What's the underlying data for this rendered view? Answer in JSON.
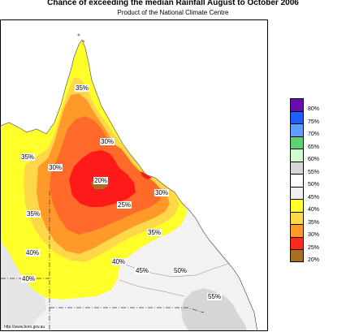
{
  "header": {
    "title": "Chance of exceeding the median Rainfall August to October 2006",
    "subtitle": "Product of the National Climate Centre"
  },
  "map": {
    "credit": "http://www.bom.gov.au",
    "labels": [
      {
        "id": "l35a",
        "text": "35%"
      },
      {
        "id": "l30a",
        "text": "30%"
      },
      {
        "id": "l35b",
        "text": "35%"
      },
      {
        "id": "l30b",
        "text": "30%"
      },
      {
        "id": "l20",
        "text": "20%"
      },
      {
        "id": "l25",
        "text": "25%"
      },
      {
        "id": "l30c",
        "text": "30%"
      },
      {
        "id": "l35c",
        "text": "35%"
      },
      {
        "id": "l35d",
        "text": "35%"
      },
      {
        "id": "l40a",
        "text": "40%"
      },
      {
        "id": "l40b",
        "text": "40%"
      },
      {
        "id": "l40c",
        "text": "40%"
      },
      {
        "id": "l45",
        "text": "45%"
      },
      {
        "id": "l50",
        "text": "50%"
      },
      {
        "id": "l55",
        "text": "55%"
      }
    ]
  },
  "legend": {
    "boundaries": [
      "80%",
      "75%",
      "70%",
      "65%",
      "60%",
      "55%",
      "50%",
      "45%",
      "40%",
      "35%",
      "30%",
      "25%",
      "20%"
    ],
    "colors": [
      "#6a0dad",
      "#1f5fff",
      "#5f9eff",
      "#5fcf6f",
      "#ccffcc",
      "#d6d6d6",
      "#ffffff",
      "#f0f0f0",
      "#ffff2a",
      "#ffd84a",
      "#ff9a2a",
      "#ff2a1a",
      "#a8711f"
    ]
  },
  "colors": {
    "band_20": "#a8711f",
    "band_20_25": "#ff1a1a",
    "band_25_30": "#ff6a2a",
    "band_30_35": "#ff9a2a",
    "band_35_40": "#ffe23a",
    "band_40_45": "#ffff2a",
    "band_45_55": "#f2f2f2",
    "band_55_60": "#d6d6d6",
    "ocean": "#ffffff"
  }
}
